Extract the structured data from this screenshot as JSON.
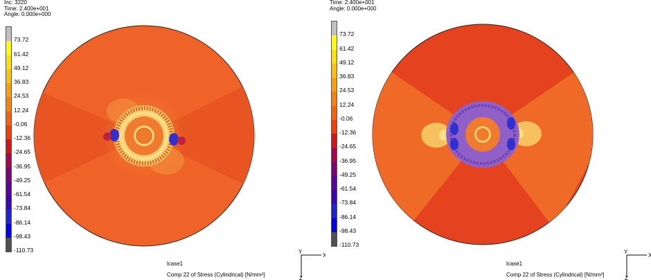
{
  "left": {
    "header": [
      "Inc:  3220",
      "Time:  2.400e+001",
      "Angle: 0.000e+000"
    ],
    "legend": [
      "73.72",
      "61.42",
      "49.12",
      "36.83",
      "24.53",
      "12.24",
      "-0.06",
      "-12.36",
      "-24.65",
      "-36.95",
      "-49.25",
      "-61.54",
      "-73.84",
      "-86.14",
      "-98.43",
      "-110.73"
    ],
    "footer_case": "lcase1",
    "footer_quantity": "Comp 22 of Stress (Cylindrical) [N/mm²]"
  },
  "right": {
    "header": [
      "Time:  2.400e+001",
      "Angle: 0.000e+000"
    ],
    "legend": [
      "73.72",
      "61.42",
      "49.12",
      "36.83",
      "24.53",
      "12.24",
      "-0.06",
      "-12.36",
      "-24.65",
      "-36.95",
      "-49.25",
      "-61.54",
      "-73.84",
      "-86.14",
      "-98.43",
      "-110.73"
    ],
    "footer_case": "lcase1",
    "footer_quantity": "Comp 22 of Stress (Cylindrical) [N/mm²]"
  },
  "axes": {
    "x": "X",
    "y": "Y",
    "z": "Z"
  },
  "colors": {
    "legend": [
      "#c0c0c0",
      "#ffff00",
      "#ffe000",
      "#ffc000",
      "#ffa000",
      "#ff8000",
      "#ff6000",
      "#ff3800",
      "#e01010",
      "#b00050",
      "#800080",
      "#6000a0",
      "#4000c0",
      "#2020e0",
      "#0000ff",
      "#505050"
    ],
    "disc_main": "#ee5a1e",
    "disc_right": "#e5431f",
    "sector_dark": "#e44d20"
  }
}
